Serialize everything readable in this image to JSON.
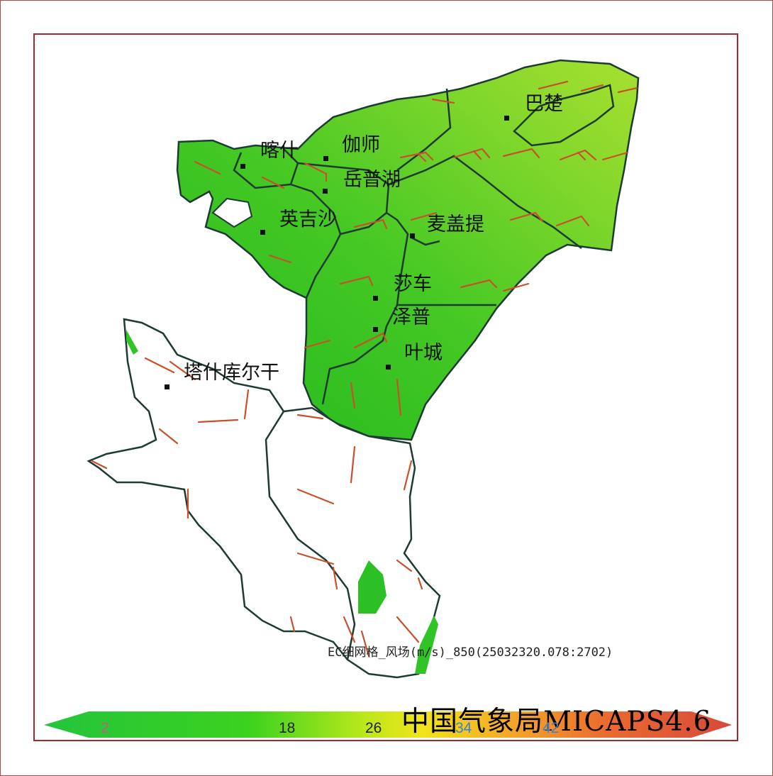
{
  "title": "",
  "product_label": "EC细网格_风场(m/s)_850(25032320.078:2702)",
  "agency_label": "中国气象局MICAPS4.6",
  "cities": [
    {
      "name": "喀什"
    },
    {
      "name": "伽师"
    },
    {
      "name": "岳普湖"
    },
    {
      "name": "英吉沙"
    },
    {
      "name": "麦盖提"
    },
    {
      "name": "莎车"
    },
    {
      "name": "泽普"
    },
    {
      "name": "叶城"
    },
    {
      "name": "巴楚"
    },
    {
      "name": "塔什库尔干"
    }
  ],
  "legend": {
    "ticks": [
      "2",
      "18",
      "26",
      "34",
      "42"
    ],
    "tick_colors": [
      "#c06080",
      "#222222",
      "#222222",
      "#3f7fd0",
      "#3f7fd0"
    ],
    "gradient_colors": [
      "#20c040",
      "#4cd61e",
      "#a8e61c",
      "#f0e41a",
      "#f6b025",
      "#ee7030",
      "#d84030"
    ]
  },
  "colors": {
    "region_fill_dark": "#2fbf22",
    "region_fill_light": "#96de2e",
    "boundary": "#1e3a34",
    "wind_barb": "#c8502a",
    "frame": "#a12a2a"
  }
}
